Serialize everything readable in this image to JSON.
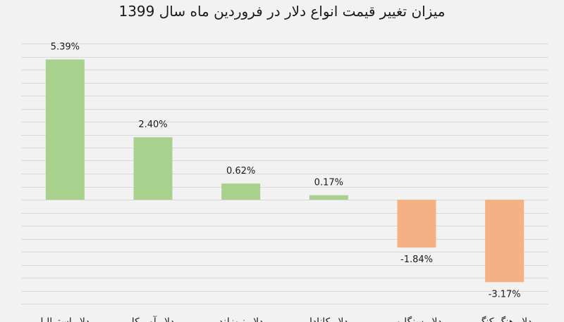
{
  "chart_data": {
    "type": "bar",
    "title": "میزان تغییر قیمت انواع دلار در فروردین ماه سال 1399",
    "categories": [
      "دلار استرالیا",
      "دلار آمریکا",
      "دلار نیوزلند",
      "دلار کانادا",
      "دلار سنگاپور",
      "دلار هنگ کنگ"
    ],
    "values": [
      5.39,
      2.4,
      0.62,
      0.17,
      -1.84,
      -3.17
    ],
    "data_labels": [
      "5.39%",
      "2.40%",
      "0.62%",
      "0.17%",
      "-1.84%",
      "-3.17%"
    ],
    "ylim": [
      -4.0,
      6.0
    ],
    "grid": true,
    "legend": "none",
    "colors": {
      "positive": "#a9d18e",
      "negative": "#f4b183",
      "grid": "#d9d9d9",
      "background": "#f2f2f2"
    }
  }
}
